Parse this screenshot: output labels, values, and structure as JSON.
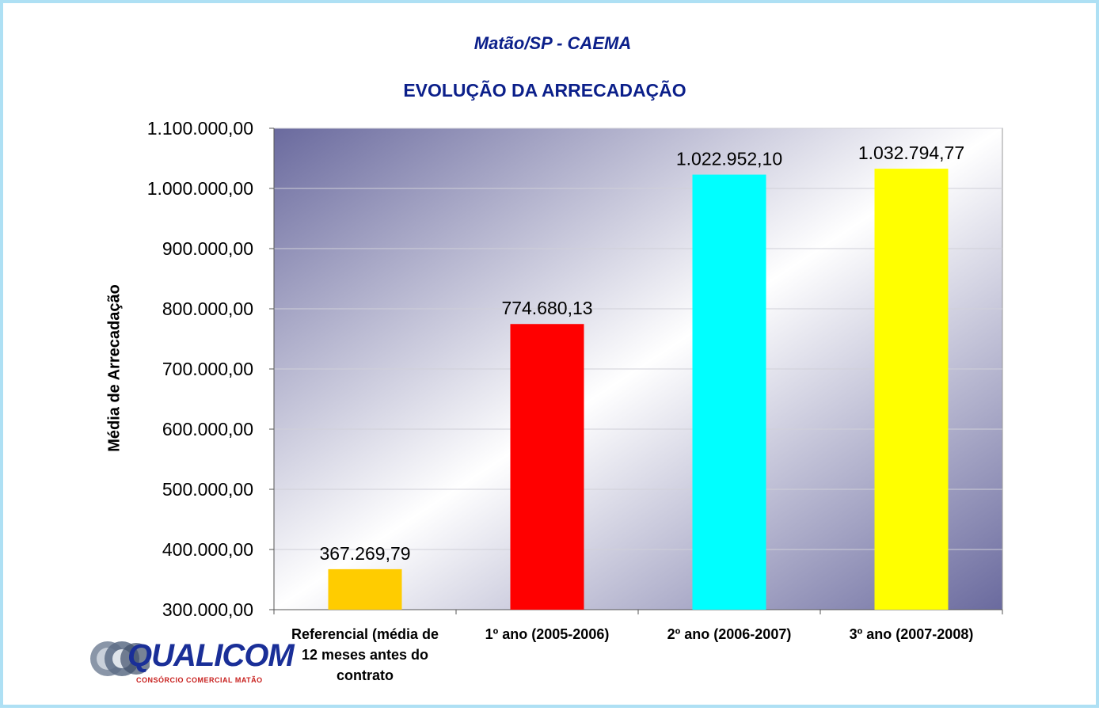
{
  "header": {
    "title": "Matão/SP - CAEMA",
    "subtitle": "EVOLUÇÃO DA ARRECADAÇÃO"
  },
  "logo": {
    "name": "QUALICOM",
    "tagline": "CONSÓRCIO COMERCIAL MATÃO"
  },
  "chart_data": {
    "type": "bar",
    "title": "EVOLUÇÃO DA ARRECADAÇÃO",
    "ylabel": "Média de Arrecadação",
    "xlabel": "",
    "ylim": [
      300000,
      1100000
    ],
    "yticks": [
      300000,
      400000,
      500000,
      600000,
      700000,
      800000,
      900000,
      1000000,
      1100000
    ],
    "ytick_labels": [
      "300.000,00",
      "400.000,00",
      "500.000,00",
      "600.000,00",
      "700.000,00",
      "800.000,00",
      "900.000,00",
      "1.000.000,00",
      "1.100.000,00"
    ],
    "grid": true,
    "categories": [
      [
        "Referencial (média de",
        "12 meses antes do",
        "contrato"
      ],
      [
        "1º ano (2005-2006)"
      ],
      [
        "2º ano (2006-2007)"
      ],
      [
        "3º ano (2007-2008)"
      ]
    ],
    "values": [
      367269.79,
      774680.13,
      1022952.1,
      1032794.77
    ],
    "value_labels": [
      "367.269,79",
      "774.680,13",
      "1.022.952,10",
      "1.032.794,77"
    ],
    "colors": [
      "#ffcc00",
      "#ff0000",
      "#00ffff",
      "#ffff00"
    ],
    "plot_background": [
      "#6a6a9e",
      "#ffffff",
      "#6a6a9e"
    ]
  }
}
